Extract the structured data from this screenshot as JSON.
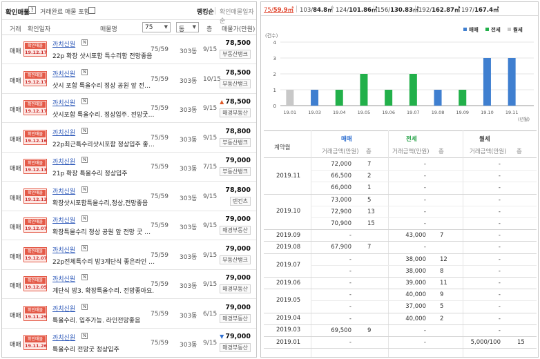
{
  "left": {
    "header": {
      "confirm_label": "확인매물",
      "help_icon_text": "?",
      "done_label": "거래완료 매물 포함",
      "rank_label": "랭킹순",
      "confirm_date_label": "확인매물일자순"
    },
    "columns": {
      "type": "거래",
      "confirm_date": "확인일자",
      "name": "매물명",
      "area_select": "75",
      "dong_select": "동",
      "floor": "층",
      "price": "매물가(만원)"
    },
    "rows": [
      {
        "type": "매매",
        "stamp_top": "확인매물",
        "date": "19.12.17",
        "agent": "까치신원",
        "badge": "N",
        "desc": "22p 확장 샷시포함 특수리함 전망좋음",
        "area": "75/59",
        "dong": "303동",
        "floor": "9/15",
        "price": "78,500",
        "trend": "",
        "source": "부동산뱅크"
      },
      {
        "type": "매매",
        "stamp_top": "확인매물",
        "date": "19.12.17",
        "agent": "까치신원",
        "badge": "N",
        "desc": "샷시 포함 특올수리 정상 공원 앞 전망 굿",
        "area": "75/59",
        "dong": "303동",
        "floor": "10/15",
        "price": "78,500",
        "trend": "",
        "source": "부동산뱅크"
      },
      {
        "type": "매매",
        "stamp_top": "확인매물",
        "date": "19.12.17",
        "agent": "까치신원",
        "badge": "N",
        "desc": "샷시포함 특올수리. 정상입주. 전망굿. 게…",
        "area": "75/59",
        "dong": "303동",
        "floor": "9/15",
        "price": "78,500",
        "trend": "up",
        "source": "매경부동산"
      },
      {
        "type": "매매",
        "stamp_top": "확인매물",
        "date": "19.12.16",
        "agent": "까치신원",
        "badge": "N",
        "desc": "22p최근특수리샷시포함 정상입주 좋은라…",
        "area": "75/59",
        "dong": "303동",
        "floor": "9/15",
        "price": "78,800",
        "trend": "",
        "source": "부동산뱅크"
      },
      {
        "type": "매매",
        "stamp_top": "확인매물",
        "date": "19.12.13",
        "agent": "까치신원",
        "badge": "N",
        "desc": "21p 확장 특올수리 정상입주",
        "area": "75/59",
        "dong": "303동",
        "floor": "7/15",
        "price": "79,000",
        "trend": "",
        "source": "부동산뱅크"
      },
      {
        "type": "매매",
        "stamp_top": "확인매물",
        "date": "19.12.13",
        "agent": "까치신원",
        "badge": "N",
        "desc": "확장샷시포함특올수리,정상,전망좋음",
        "area": "75/59",
        "dong": "303동",
        "floor": "9/15",
        "price": "78,800",
        "trend": "",
        "source": "텐컨츠"
      },
      {
        "type": "매매",
        "stamp_top": "확인매물",
        "date": "19.12.07",
        "agent": "까치신원",
        "badge": "N",
        "desc": "확장특올수리 정상 공원 앞 전망 굿 초중…",
        "area": "75/59",
        "dong": "303동",
        "floor": "9/15",
        "price": "79,000",
        "trend": "",
        "source": "매경부동산"
      },
      {
        "type": "매매",
        "stamp_top": "확인매물",
        "date": "19.12.07",
        "agent": "까치신원",
        "badge": "N",
        "desc": "22p전체특수리 방3계단식 좋은라인 전…",
        "area": "75/59",
        "dong": "303동",
        "floor": "9/15",
        "price": "79,000",
        "trend": "",
        "source": "부동산뱅크"
      },
      {
        "type": "매매",
        "stamp_top": "확인매물",
        "date": "19.12.05",
        "agent": "까치신원",
        "badge": "N",
        "desc": "계단식 방3. 확장특올수리. 전망좋아요.",
        "area": "75/59",
        "dong": "303동",
        "floor": "9/15",
        "price": "79,000",
        "trend": "",
        "source": "매경부동산"
      },
      {
        "type": "매매",
        "stamp_top": "확인매물",
        "date": "19.11.29",
        "agent": "까치신원",
        "badge": "N",
        "desc": "특올수리. 입주가능. 라인전망좋음",
        "area": "75/59",
        "dong": "303동",
        "floor": "6/15",
        "price": "79,000",
        "trend": "",
        "source": "매경부동산"
      },
      {
        "type": "매매",
        "stamp_top": "확인매물",
        "date": "19.11.26",
        "agent": "까치신원",
        "badge": "N",
        "desc": "특올수리 전망굿 정상입주",
        "area": "75/59",
        "dong": "303동",
        "floor": "9/15",
        "price": "79,000",
        "trend": "down",
        "source": "매경부동산"
      }
    ]
  },
  "right": {
    "tabs": [
      {
        "a": "75/",
        "b": "59.9㎡",
        "active": true
      },
      {
        "a": "103/",
        "b": "84.8㎡",
        "active": false
      },
      {
        "a": "124/",
        "b": "101.86㎡",
        "active": false
      },
      {
        "a": "156/",
        "b": "130.83㎡",
        "active": false
      },
      {
        "a": "192/",
        "b": "162.87㎡",
        "active": false
      },
      {
        "a": "197/",
        "b": "167.4㎡",
        "active": false
      }
    ],
    "chart_data": {
      "type": "bar",
      "ylabel": "(건수)",
      "xlabel": "(년월)",
      "ylim": [
        0,
        4
      ],
      "yticks": [
        0,
        1,
        2,
        3,
        4
      ],
      "categories": [
        "19.01",
        "19.03",
        "19.04",
        "19.05",
        "19.06",
        "19.07",
        "19.08",
        "19.09",
        "19.10",
        "19.11"
      ],
      "legend_position": "top-right",
      "series": [
        {
          "name": "매매",
          "color": "#3f7fd0"
        },
        {
          "name": "전세",
          "color": "#22b04a"
        },
        {
          "name": "월세",
          "color": "#c8c8c8"
        }
      ],
      "bars": [
        {
          "category": "19.01",
          "series": "월세",
          "value": 1
        },
        {
          "category": "19.03",
          "series": "매매",
          "value": 1
        },
        {
          "category": "19.04",
          "series": "전세",
          "value": 1
        },
        {
          "category": "19.05",
          "series": "전세",
          "value": 2
        },
        {
          "category": "19.06",
          "series": "전세",
          "value": 1
        },
        {
          "category": "19.07",
          "series": "전세",
          "value": 2
        },
        {
          "category": "19.08",
          "series": "매매",
          "value": 1
        },
        {
          "category": "19.09",
          "series": "전세",
          "value": 1
        },
        {
          "category": "19.10",
          "series": "매매",
          "value": 3
        },
        {
          "category": "19.11",
          "series": "매매",
          "value": 3
        }
      ],
      "grid": true
    },
    "table": {
      "col_contract": "계약월",
      "group_sale": "매매",
      "group_jeonse": "전세",
      "group_wolse": "월세",
      "sub_price": "거래금액(만원)",
      "sub_floor": "층",
      "sub_wolse_price": "거래금액(만원)",
      "groups": [
        {
          "month": "2019.11",
          "rows": [
            {
              "s": "72,000",
              "sf": "7",
              "j": "-",
              "jf": "",
              "w": "-",
              "wf": ""
            },
            {
              "s": "66,500",
              "sf": "2",
              "j": "-",
              "jf": "",
              "w": "-",
              "wf": ""
            },
            {
              "s": "66,000",
              "sf": "1",
              "j": "-",
              "jf": "",
              "w": "-",
              "wf": ""
            }
          ]
        },
        {
          "month": "2019.10",
          "rows": [
            {
              "s": "73,000",
              "sf": "5",
              "j": "-",
              "jf": "",
              "w": "-",
              "wf": ""
            },
            {
              "s": "72,900",
              "sf": "13",
              "j": "-",
              "jf": "",
              "w": "-",
              "wf": ""
            },
            {
              "s": "70,900",
              "sf": "15",
              "j": "-",
              "jf": "",
              "w": "-",
              "wf": ""
            }
          ]
        },
        {
          "month": "2019.09",
          "rows": [
            {
              "s": "-",
              "sf": "",
              "j": "43,000",
              "jf": "7",
              "w": "-",
              "wf": ""
            }
          ]
        },
        {
          "month": "2019.08",
          "rows": [
            {
              "s": "67,900",
              "sf": "7",
              "j": "-",
              "jf": "",
              "w": "-",
              "wf": ""
            }
          ]
        },
        {
          "month": "2019.07",
          "rows": [
            {
              "s": "-",
              "sf": "",
              "j": "38,000",
              "jf": "12",
              "w": "-",
              "wf": ""
            },
            {
              "s": "-",
              "sf": "",
              "j": "38,000",
              "jf": "8",
              "w": "-",
              "wf": ""
            }
          ]
        },
        {
          "month": "2019.06",
          "rows": [
            {
              "s": "-",
              "sf": "",
              "j": "39,000",
              "jf": "11",
              "w": "-",
              "wf": ""
            }
          ]
        },
        {
          "month": "2019.05",
          "rows": [
            {
              "s": "-",
              "sf": "",
              "j": "40,000",
              "jf": "9",
              "w": "-",
              "wf": ""
            },
            {
              "s": "-",
              "sf": "",
              "j": "37,000",
              "jf": "5",
              "w": "-",
              "wf": ""
            }
          ]
        },
        {
          "month": "2019.04",
          "rows": [
            {
              "s": "-",
              "sf": "",
              "j": "40,000",
              "jf": "2",
              "w": "-",
              "wf": ""
            }
          ]
        },
        {
          "month": "2019.03",
          "rows": [
            {
              "s": "69,500",
              "sf": "9",
              "j": "-",
              "jf": "",
              "w": "-",
              "wf": ""
            }
          ]
        },
        {
          "month": "2019.01",
          "rows": [
            {
              "s": "-",
              "sf": "",
              "j": "-",
              "jf": "",
              "w": "5,000/100",
              "wf": "15"
            }
          ]
        }
      ]
    }
  }
}
